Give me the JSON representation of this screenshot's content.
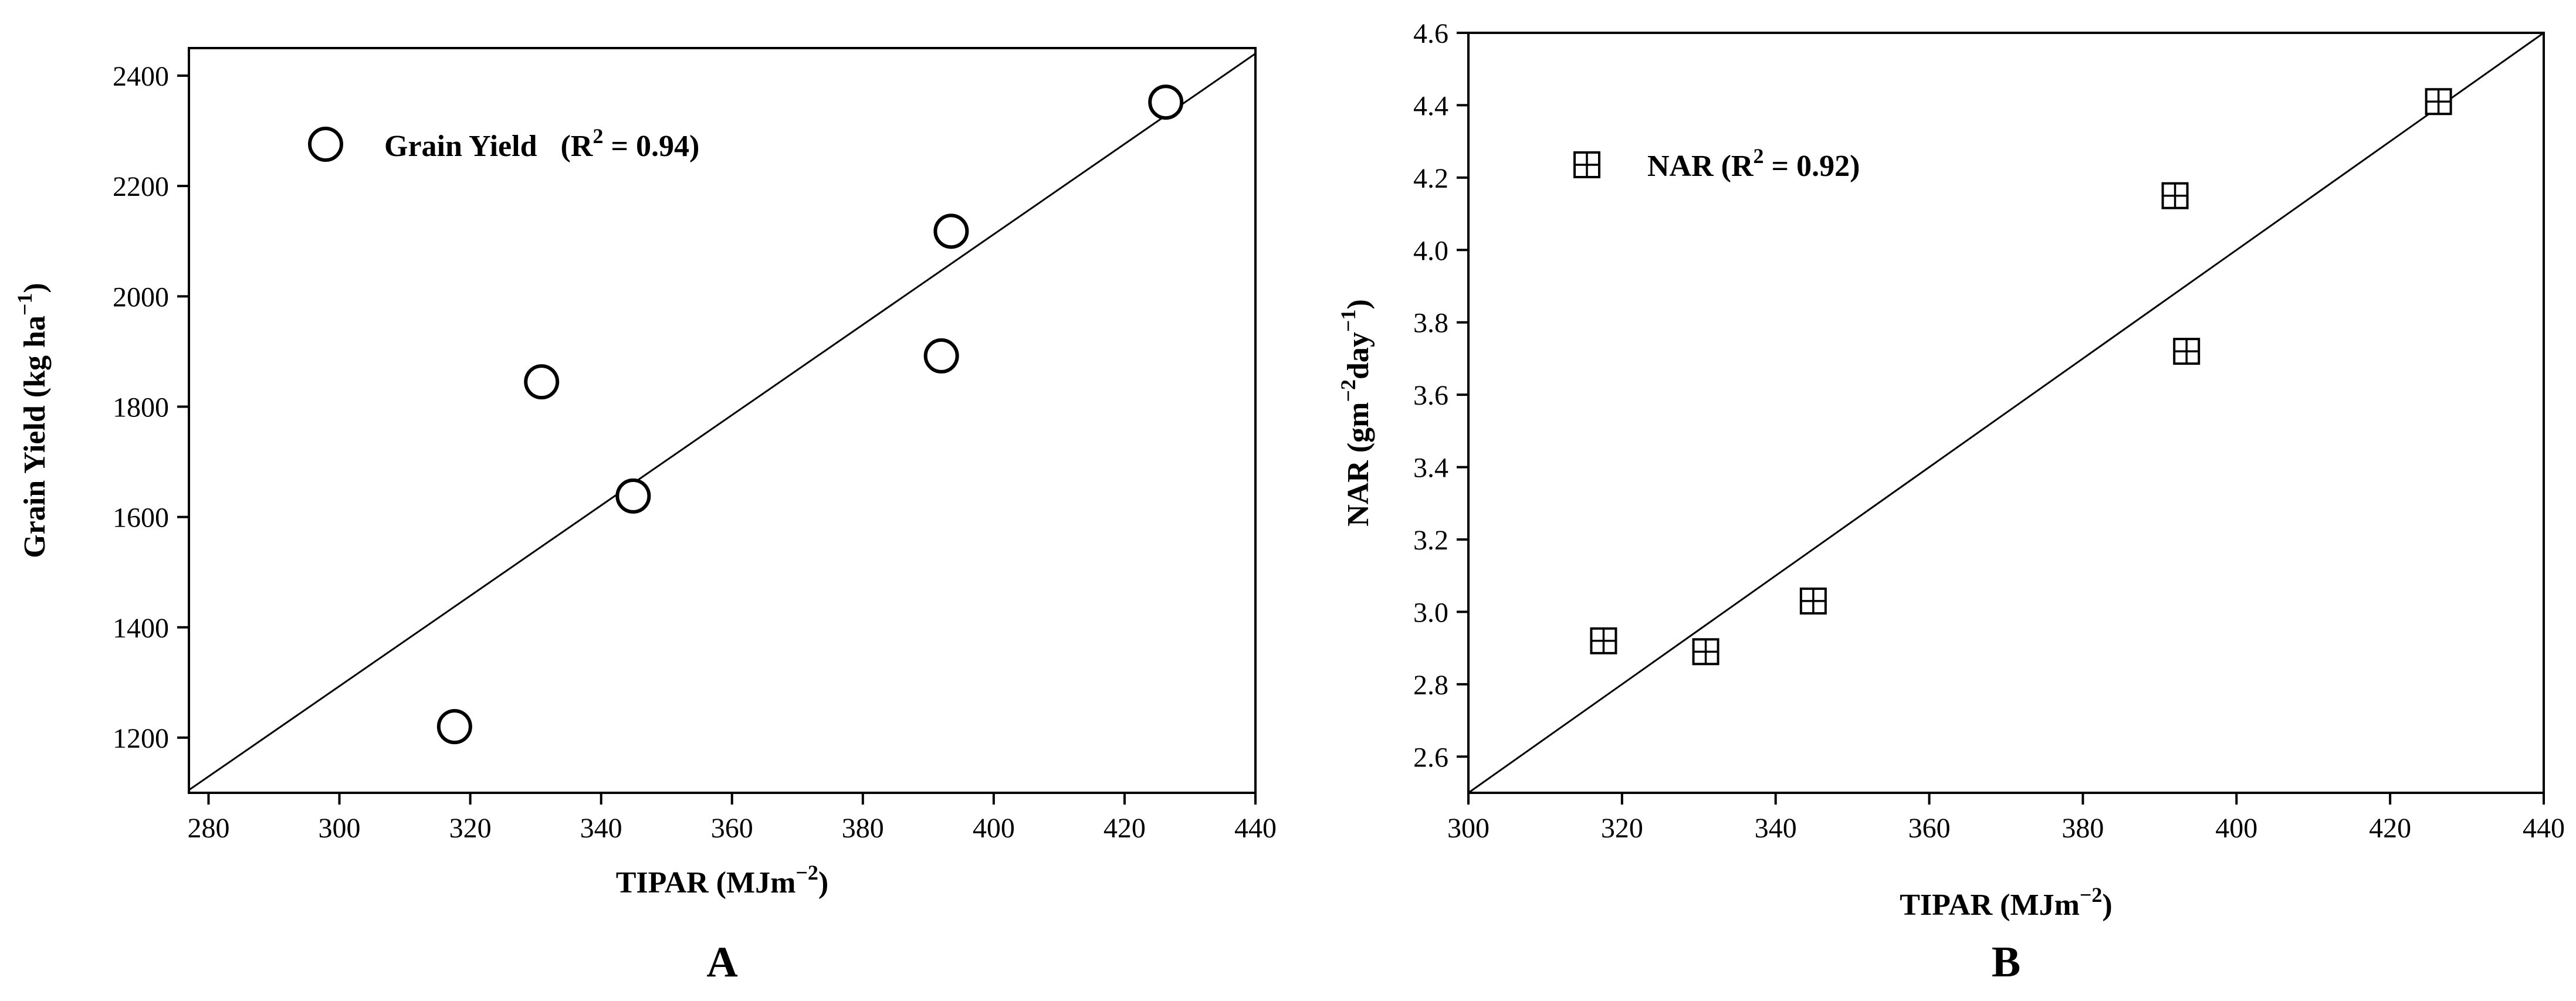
{
  "chart_data": [
    {
      "panel": "A",
      "type": "scatter",
      "panel_label": "A",
      "xlabel": "TIPAR (MJm",
      "xlabel_sup": "−2",
      "xlabel_end": ")",
      "ylabel": "Grain Yield (kg ha",
      "ylabel_sup": "−1",
      "ylabel_end": ")",
      "xlim": [
        277,
        440
      ],
      "ylim": [
        1100,
        2450
      ],
      "xticks": [
        280,
        300,
        320,
        340,
        360,
        380,
        400,
        420,
        440
      ],
      "yticks": [
        1200,
        1400,
        1600,
        1800,
        2000,
        2200,
        2400
      ],
      "grid": false,
      "legend": {
        "label": "Grain Yield",
        "r2_prefix": "(R",
        "r2_sup": "2",
        "r2_suffix": " = 0.94)",
        "marker": "circle",
        "position": "upper-left"
      },
      "series": [
        {
          "marker": "circle",
          "x": [
            317.6,
            330.9,
            344.9,
            392.0,
            393.5,
            426.3
          ],
          "y": [
            1220,
            1845,
            1638,
            1892,
            2118,
            2352
          ]
        }
      ],
      "fit_line": {
        "x": [
          277,
          440
        ],
        "y": [
          1105,
          2440
        ]
      }
    },
    {
      "panel": "B",
      "type": "scatter",
      "panel_label": "B",
      "xlabel": "TIPAR (MJm",
      "xlabel_sup": "−2",
      "xlabel_end": ")",
      "ylabel": "NAR (gm",
      "ylabel_sup": "−2",
      "ylabel_mid": "day",
      "ylabel_sup2": "−1",
      "ylabel_end": ")",
      "xlim": [
        300,
        440
      ],
      "ylim": [
        2.5,
        4.6
      ],
      "xticks": [
        300,
        320,
        340,
        360,
        380,
        400,
        420,
        440
      ],
      "yticks": [
        "2.6",
        "2.8",
        "3.0",
        "3.2",
        "3.4",
        "3.6",
        "3.8",
        "4.0",
        "4.2",
        "4.4",
        "4.6"
      ],
      "grid": false,
      "legend": {
        "label": "NAR (R",
        "r2_sup": "2",
        "r2_suffix": " = 0.92)",
        "marker": "boxed-plus",
        "position": "upper-left"
      },
      "series": [
        {
          "marker": "boxed-plus",
          "x": [
            317.6,
            330.9,
            344.9,
            392.0,
            393.5,
            426.3
          ],
          "y": [
            2.92,
            2.89,
            3.03,
            4.15,
            3.72,
            4.41
          ]
        }
      ],
      "fit_line": {
        "x": [
          300,
          440
        ],
        "y": [
          2.5,
          4.6
        ]
      }
    }
  ]
}
